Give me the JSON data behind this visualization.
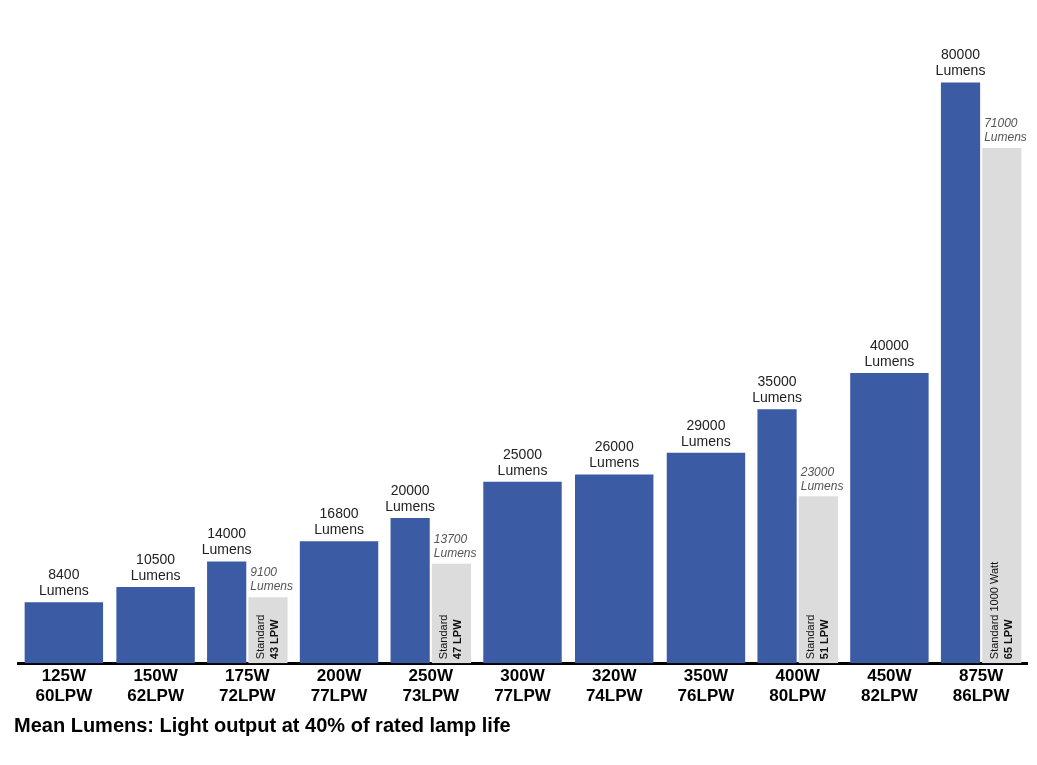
{
  "chart_data": {
    "type": "bar",
    "relative": false,
    "categories": [
      "125W 60LPW",
      "150W 62LPW",
      "175W 72LPW",
      "200W 77LPW",
      "250W 73LPW",
      "300W 77LPW",
      "320W 74LPW",
      "350W 76LPW",
      "400W 80LPW",
      "450W 82LPW",
      "875W 86LPW"
    ],
    "series": [
      {
        "color": "#3b5ba5",
        "values": [
          8400,
          10500,
          14000,
          16800,
          20000,
          25000,
          26000,
          29000,
          35000,
          40000,
          80000
        ],
        "value_labels": [
          "8400 Lumens",
          "10500 Lumens",
          "14000 Lumens",
          "16800 Lumens",
          "20000 Lumens",
          "25000 Lumens",
          "26000 Lumens",
          "29000 Lumens",
          "35000 Lumens",
          "40000 Lumens",
          "80000 Lumens"
        ]
      },
      {
        "color": "#dcdcdc",
        "values": [
          null,
          null,
          9100,
          null,
          13700,
          null,
          null,
          null,
          23000,
          null,
          71000
        ],
        "value_labels": [
          null,
          null,
          "9100 Lumens",
          null,
          "13700 Lumens",
          null,
          null,
          null,
          "23000 Lumens",
          null,
          "71000 Lumens"
        ]
      }
    ],
    "annotations": [
      {
        "text": "Standard 43 LPW",
        "x": "175W 72LPW",
        "y": 0
      },
      {
        "text": "Standard 47 LPW",
        "x": "250W 73LPW",
        "y": 0
      },
      {
        "text": "Standard 51 LPW",
        "x": "400W 80LPW",
        "y": 0
      },
      {
        "text": "Standard 1000 Watt 65 LPW",
        "x": "875W 86LPW",
        "y": 0
      },
      "Mean Lumens:  Light output at 40% of rated lamp life"
    ],
    "grid": false,
    "legend": false
  }
}
